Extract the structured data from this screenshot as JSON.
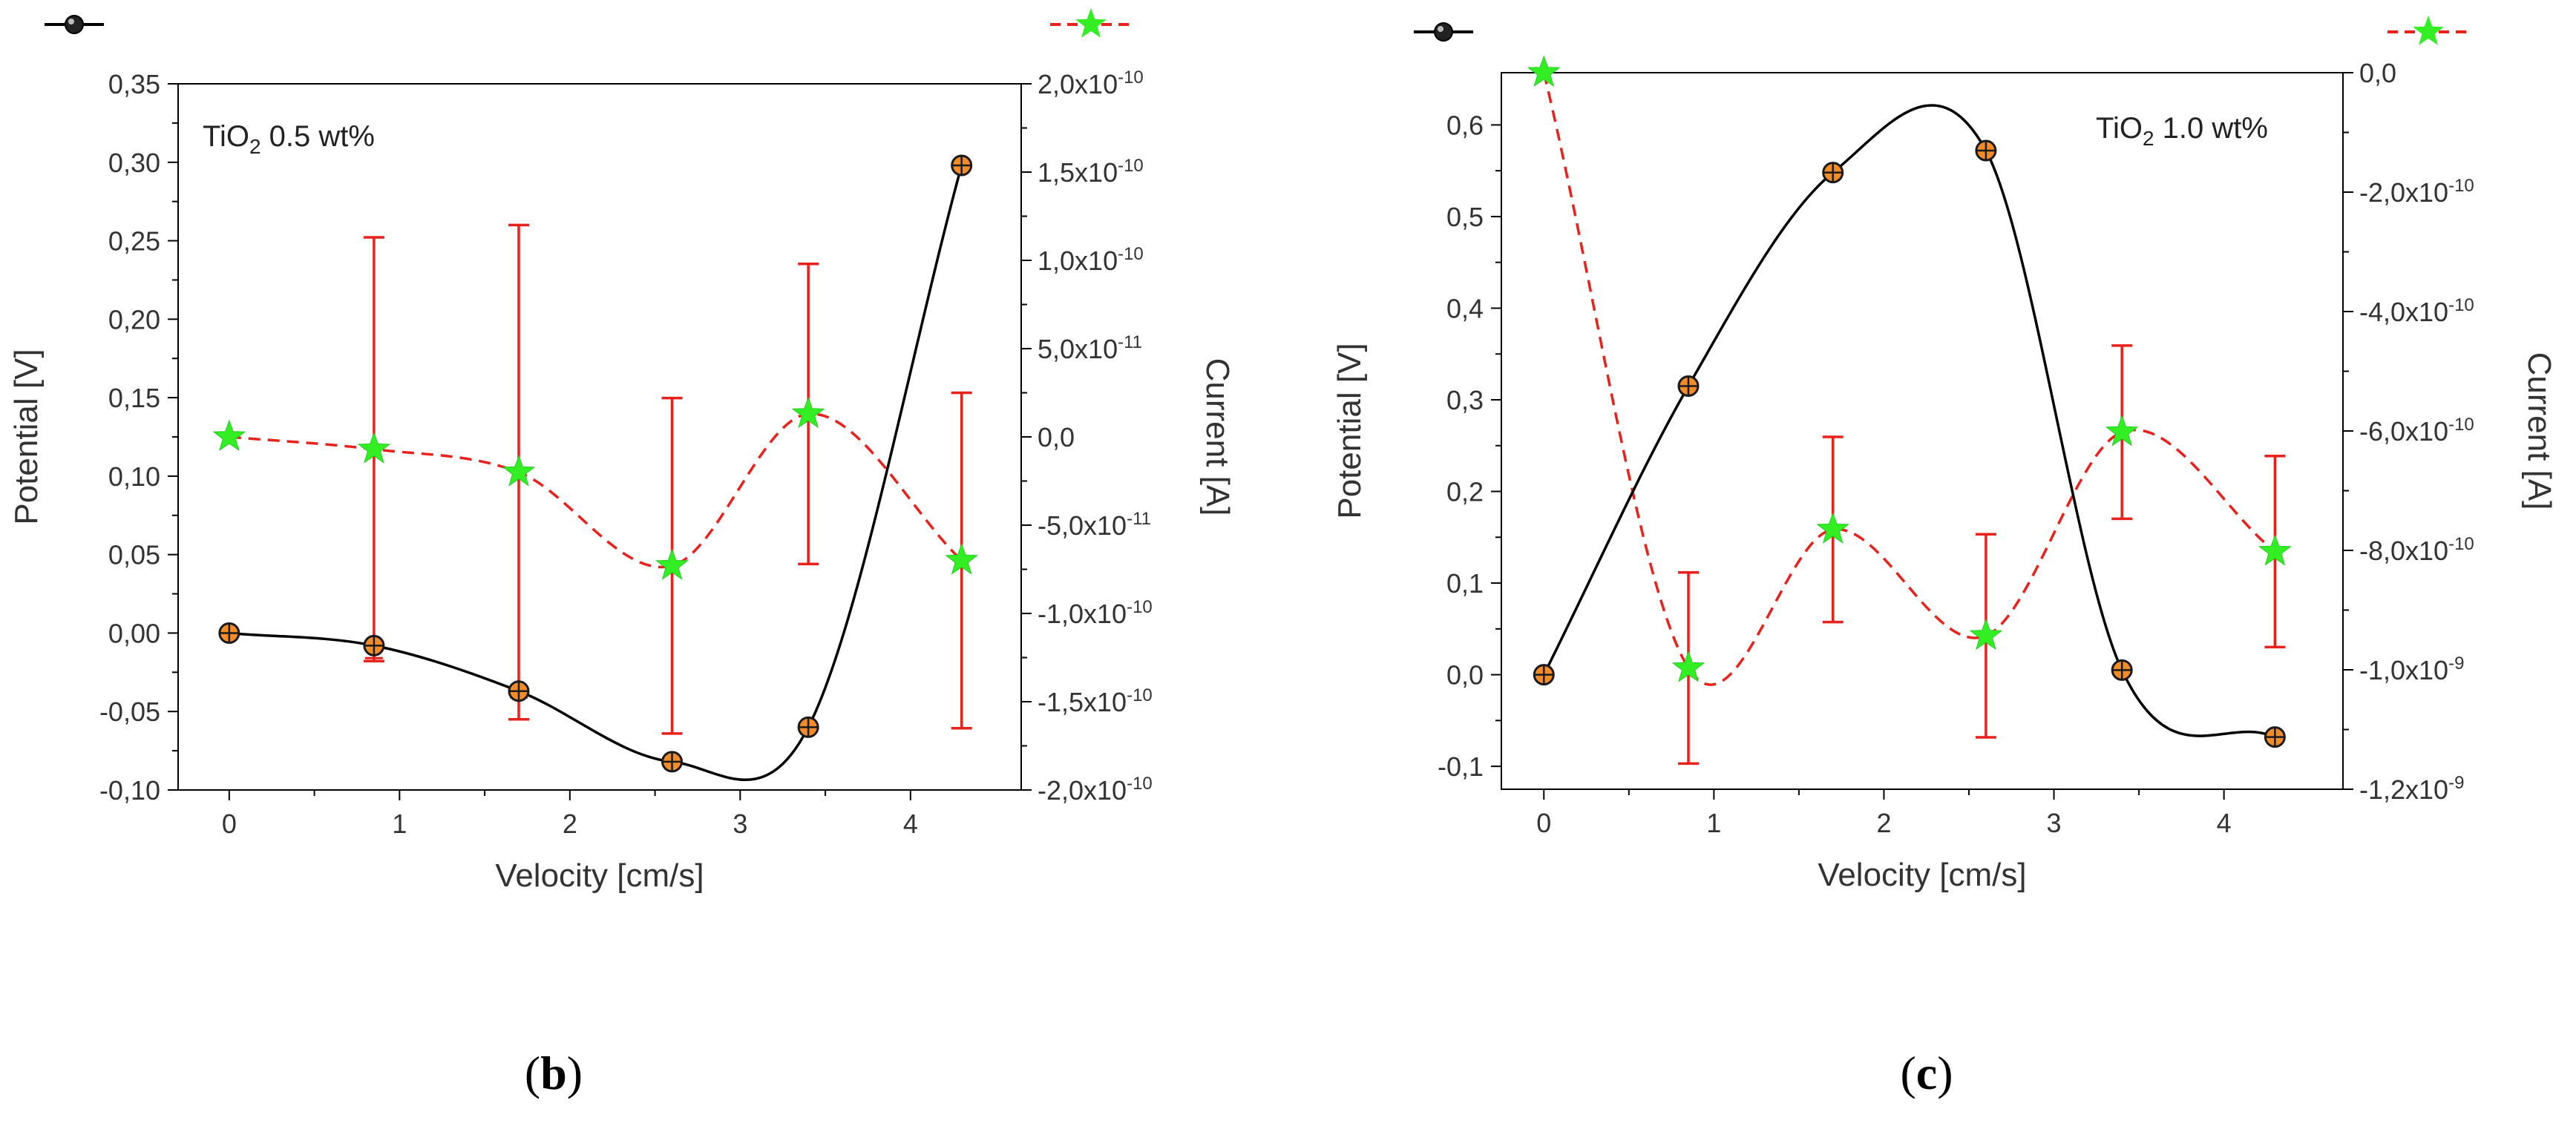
{
  "chart_data": [
    {
      "type": "line",
      "panel_label": "(b)",
      "letter": "b",
      "annotation": {
        "prefix": "TiO",
        "sub": "2",
        "suffix": " 0.5 wt%"
      },
      "xlabel": "Velocity [cm/s]",
      "ylabel": "Potential [V]",
      "y2label": "Current [A]",
      "xlim": [
        -0.3,
        4.65
      ],
      "ylim": [
        -0.1,
        0.35
      ],
      "y2lim": [
        -2e-10,
        2e-10
      ],
      "xticks": [
        0,
        1,
        2,
        3,
        4
      ],
      "xtick_labels": [
        "0",
        "1",
        "2",
        "3",
        "4"
      ],
      "yticks": [
        -0.1,
        -0.05,
        0.0,
        0.05,
        0.1,
        0.15,
        0.2,
        0.25,
        0.3,
        0.35
      ],
      "ytick_labels": [
        "-0,10",
        "-0,05",
        "0,00",
        "0,05",
        "0,10",
        "0,15",
        "0,20",
        "0,25",
        "0,30",
        "0,35"
      ],
      "y2ticks": [
        -2e-10,
        -1.5e-10,
        -1e-10,
        -5e-11,
        0,
        5e-11,
        1e-10,
        1.5e-10,
        2e-10
      ],
      "y2tick_labels": [
        {
          "base": "-2,0x10",
          "exp": "-10"
        },
        {
          "base": "-1,5x10",
          "exp": "-10"
        },
        {
          "base": "-1,0x10",
          "exp": "-10"
        },
        {
          "base": "-5,0x10",
          "exp": "-11"
        },
        {
          "base": "0,0",
          "exp": ""
        },
        {
          "base": "5,0x10",
          "exp": "-11"
        },
        {
          "base": "1,0x10",
          "exp": "-10"
        },
        {
          "base": "1,5x10",
          "exp": "-10"
        },
        {
          "base": "2,0x10",
          "exp": "-10"
        }
      ],
      "series": [
        {
          "name": "Potential",
          "axis": "left",
          "color": "#000000",
          "marker": "sphere",
          "marker_color": "#f28c28",
          "line_style": "solid",
          "x": [
            0,
            0.85,
            1.7,
            2.6,
            3.4,
            4.3
          ],
          "y": [
            0.0,
            -0.008,
            -0.037,
            -0.082,
            -0.06,
            0.298
          ],
          "yerr": [
            0.0,
            0.008,
            0.004,
            0.0,
            0.0,
            0.0
          ]
        },
        {
          "name": "Current",
          "axis": "right",
          "color": "#e8211b",
          "marker": "star",
          "marker_color": "#33ee22",
          "line_style": "dashed",
          "x": [
            0,
            0.85,
            1.7,
            2.6,
            3.4,
            4.3
          ],
          "y": [
            0.0,
            -7e-12,
            -2e-11,
            -7.3e-11,
            1.3e-11,
            -7e-11
          ],
          "yerr": [
            0.0,
            1.2e-10,
            1.4e-10,
            9.5e-11,
            8.5e-11,
            9.5e-11
          ]
        }
      ]
    },
    {
      "type": "line",
      "panel_label": "(c)",
      "letter": "c",
      "annotation": {
        "prefix": "TiO",
        "sub": "2",
        "suffix": " 1.0 wt%"
      },
      "xlabel": "Velocity [cm/s]",
      "ylabel": "Potential [V]",
      "y2label": "Current [A]",
      "xlim": [
        -0.25,
        4.7
      ],
      "ylim": [
        -0.125,
        0.657
      ],
      "y2lim": [
        -1.2e-09,
        0.0
      ],
      "xticks": [
        0,
        1,
        2,
        3,
        4
      ],
      "xtick_labels": [
        "0",
        "1",
        "2",
        "3",
        "4"
      ],
      "yticks": [
        -0.1,
        0.0,
        0.1,
        0.2,
        0.3,
        0.4,
        0.5,
        0.6
      ],
      "ytick_labels": [
        "-0,1",
        "0,0",
        "0,1",
        "0,2",
        "0,3",
        "0,4",
        "0,5",
        "0,6"
      ],
      "y2ticks": [
        -1.2e-09,
        -1e-09,
        -8e-10,
        -6e-10,
        -4e-10,
        -2e-10,
        0.0
      ],
      "y2tick_labels": [
        {
          "base": "-1,2x10",
          "exp": "-9"
        },
        {
          "base": "-1,0x10",
          "exp": "-9"
        },
        {
          "base": "-8,0x10",
          "exp": "-10"
        },
        {
          "base": "-6,0x10",
          "exp": "-10"
        },
        {
          "base": "-4,0x10",
          "exp": "-10"
        },
        {
          "base": "-2,0x10",
          "exp": "-10"
        },
        {
          "base": "0,0",
          "exp": ""
        }
      ],
      "series": [
        {
          "name": "Potential",
          "axis": "left",
          "color": "#000000",
          "marker": "sphere",
          "marker_color": "#f28c28",
          "line_style": "solid",
          "x": [
            0,
            0.85,
            1.7,
            2.6,
            3.4,
            4.3
          ],
          "y": [
            0.0,
            0.315,
            0.548,
            0.572,
            0.005,
            -0.068
          ],
          "yerr": [
            0,
            0,
            0,
            0,
            0,
            0
          ]
        },
        {
          "name": "Current",
          "axis": "right",
          "color": "#e8211b",
          "marker": "star",
          "marker_color": "#33ee22",
          "line_style": "dashed",
          "x": [
            0,
            0.85,
            1.7,
            2.6,
            3.4,
            4.3
          ],
          "y": [
            0.0,
            -9.97e-10,
            -7.65e-10,
            -9.43e-10,
            -6.02e-10,
            -8.02e-10
          ],
          "yerr": [
            0.0,
            1.6e-10,
            1.55e-10,
            1.7e-10,
            1.45e-10,
            1.6e-10
          ]
        }
      ]
    }
  ]
}
